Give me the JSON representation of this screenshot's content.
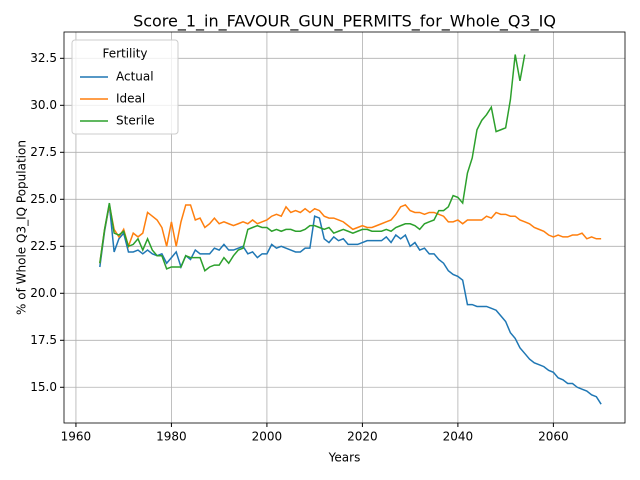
{
  "chart_data": {
    "type": "line",
    "title": "Score_1_in_FAVOUR_GUN_PERMITS_for_Whole_Q3_IQ",
    "xlabel": "Years",
    "ylabel": "% of Whole Q3_IQ Population",
    "legend_title": "Fertility",
    "legend": "upper left",
    "grid": true,
    "x": [
      1965,
      1966,
      1967,
      1968,
      1969,
      1970,
      1971,
      1972,
      1973,
      1974,
      1975,
      1976,
      1977,
      1978,
      1979,
      1980,
      1981,
      1982,
      1983,
      1984,
      1985,
      1986,
      1987,
      1988,
      1989,
      1990,
      1991,
      1992,
      1993,
      1994,
      1995,
      1996,
      1997,
      1998,
      1999,
      2000,
      2001,
      2002,
      2003,
      2004,
      2005,
      2006,
      2007,
      2008,
      2009,
      2010,
      2011,
      2012,
      2013,
      2014,
      2015,
      2016,
      2017,
      2018,
      2019,
      2020,
      2021,
      2022,
      2023,
      2024,
      2025,
      2026,
      2027,
      2028,
      2029,
      2030,
      2031,
      2032,
      2033,
      2034,
      2035,
      2036,
      2037,
      2038,
      2039,
      2040,
      2041,
      2042,
      2043,
      2044,
      2045,
      2046,
      2047,
      2048,
      2049,
      2050,
      2051,
      2052,
      2053,
      2054,
      2055,
      2056,
      2057,
      2058,
      2059,
      2060,
      2061,
      2062,
      2063,
      2064,
      2065,
      2066,
      2067,
      2068,
      2069,
      2070
    ],
    "series": [
      {
        "name": "Actual",
        "color": "#1f77b4",
        "values": [
          21.4,
          23.3,
          24.7,
          22.2,
          22.9,
          23.2,
          22.2,
          22.2,
          22.3,
          22.1,
          22.3,
          22.1,
          22.0,
          22.1,
          21.6,
          21.9,
          22.2,
          21.4,
          22.0,
          21.8,
          22.3,
          22.1,
          22.1,
          22.1,
          22.4,
          22.3,
          22.6,
          22.3,
          22.3,
          22.4,
          22.5,
          22.1,
          22.2,
          21.9,
          22.1,
          22.1,
          22.6,
          22.4,
          22.5,
          22.4,
          22.3,
          22.2,
          22.2,
          22.4,
          22.4,
          24.1,
          24.0,
          22.9,
          22.7,
          23.0,
          22.8,
          22.9,
          22.6,
          22.6,
          22.6,
          22.7,
          22.8,
          22.8,
          22.8,
          22.8,
          23.0,
          22.7,
          23.1,
          22.9,
          23.1,
          22.5,
          22.7,
          22.3,
          22.4,
          22.1,
          22.1,
          21.8,
          21.6,
          21.2,
          21.0,
          20.9,
          20.7,
          19.4,
          19.4,
          19.3,
          19.3,
          19.3,
          19.2,
          19.1,
          18.8,
          18.5,
          17.9,
          17.6,
          17.1,
          16.8,
          16.5,
          16.3,
          16.2,
          16.1,
          15.9,
          15.8,
          15.5,
          15.4,
          15.2,
          15.2,
          15.0,
          14.9,
          14.8,
          14.6,
          14.5,
          14.1
        ]
      },
      {
        "name": "Ideal",
        "color": "#ff7f0e",
        "values": [
          21.6,
          23.4,
          24.7,
          23.4,
          23.0,
          23.4,
          22.5,
          23.2,
          23.0,
          23.2,
          24.3,
          24.1,
          23.9,
          23.5,
          22.5,
          23.8,
          22.5,
          23.8,
          24.7,
          24.7,
          23.9,
          24.0,
          23.5,
          23.7,
          24.0,
          23.7,
          23.8,
          23.7,
          23.6,
          23.7,
          23.8,
          23.7,
          23.9,
          23.7,
          23.8,
          23.9,
          24.1,
          24.2,
          24.1,
          24.6,
          24.3,
          24.4,
          24.3,
          24.5,
          24.3,
          24.5,
          24.4,
          24.1,
          24.0,
          24.0,
          23.9,
          23.8,
          23.6,
          23.4,
          23.5,
          23.6,
          23.5,
          23.5,
          23.6,
          23.7,
          23.8,
          23.9,
          24.2,
          24.6,
          24.7,
          24.4,
          24.3,
          24.3,
          24.2,
          24.3,
          24.3,
          24.2,
          24.1,
          23.8,
          23.8,
          23.9,
          23.7,
          23.9,
          23.9,
          23.9,
          23.9,
          24.1,
          24.0,
          24.3,
          24.2,
          24.2,
          24.1,
          24.1,
          23.9,
          23.8,
          23.7,
          23.5,
          23.4,
          23.3,
          23.1,
          23.0,
          23.1,
          23.0,
          23.0,
          23.1,
          23.1,
          23.2,
          22.9,
          23.0,
          22.9,
          22.9
        ]
      },
      {
        "name": "Sterile",
        "color": "#2ca02c",
        "values": [
          21.6,
          23.4,
          24.8,
          23.2,
          23.1,
          23.3,
          22.5,
          22.6,
          22.9,
          22.3,
          22.9,
          22.3,
          22.0,
          22.0,
          21.3,
          21.4,
          21.4,
          21.4,
          22.0,
          21.9,
          21.9,
          21.9,
          21.2,
          21.4,
          21.5,
          21.5,
          21.9,
          21.6,
          22.0,
          22.3,
          22.4,
          23.4,
          23.5,
          23.6,
          23.5,
          23.5,
          23.3,
          23.4,
          23.3,
          23.4,
          23.4,
          23.3,
          23.3,
          23.4,
          23.6,
          23.6,
          23.5,
          23.4,
          23.5,
          23.2,
          23.3,
          23.4,
          23.3,
          23.2,
          23.3,
          23.4,
          23.4,
          23.3,
          23.3,
          23.3,
          23.4,
          23.3,
          23.5,
          23.6,
          23.7,
          23.7,
          23.6,
          23.4,
          23.7,
          23.8,
          23.9,
          24.4,
          24.4,
          24.6,
          25.2,
          25.1,
          24.8,
          26.4,
          27.2,
          28.7,
          29.2,
          29.5,
          29.9,
          28.6,
          28.7,
          28.8,
          30.3,
          32.7,
          31.3,
          32.7,
          null,
          null,
          null,
          null,
          null,
          null,
          null,
          null,
          null,
          null,
          null,
          null,
          null,
          null,
          null,
          null
        ]
      }
    ],
    "xlim": [
      1957.5,
      2075
    ],
    "xticks": [
      1960,
      1980,
      2000,
      2020,
      2040,
      2060
    ],
    "ylim": [
      13.1,
      33.9
    ],
    "yticks": [
      {
        "value": 15,
        "label": "15.0"
      },
      17.5,
      {
        "value": 20,
        "label": "20.0"
      },
      22.5,
      {
        "value": 25,
        "label": "25.0"
      },
      27.5,
      {
        "value": 30,
        "label": "30.0"
      },
      32.5
    ]
  }
}
